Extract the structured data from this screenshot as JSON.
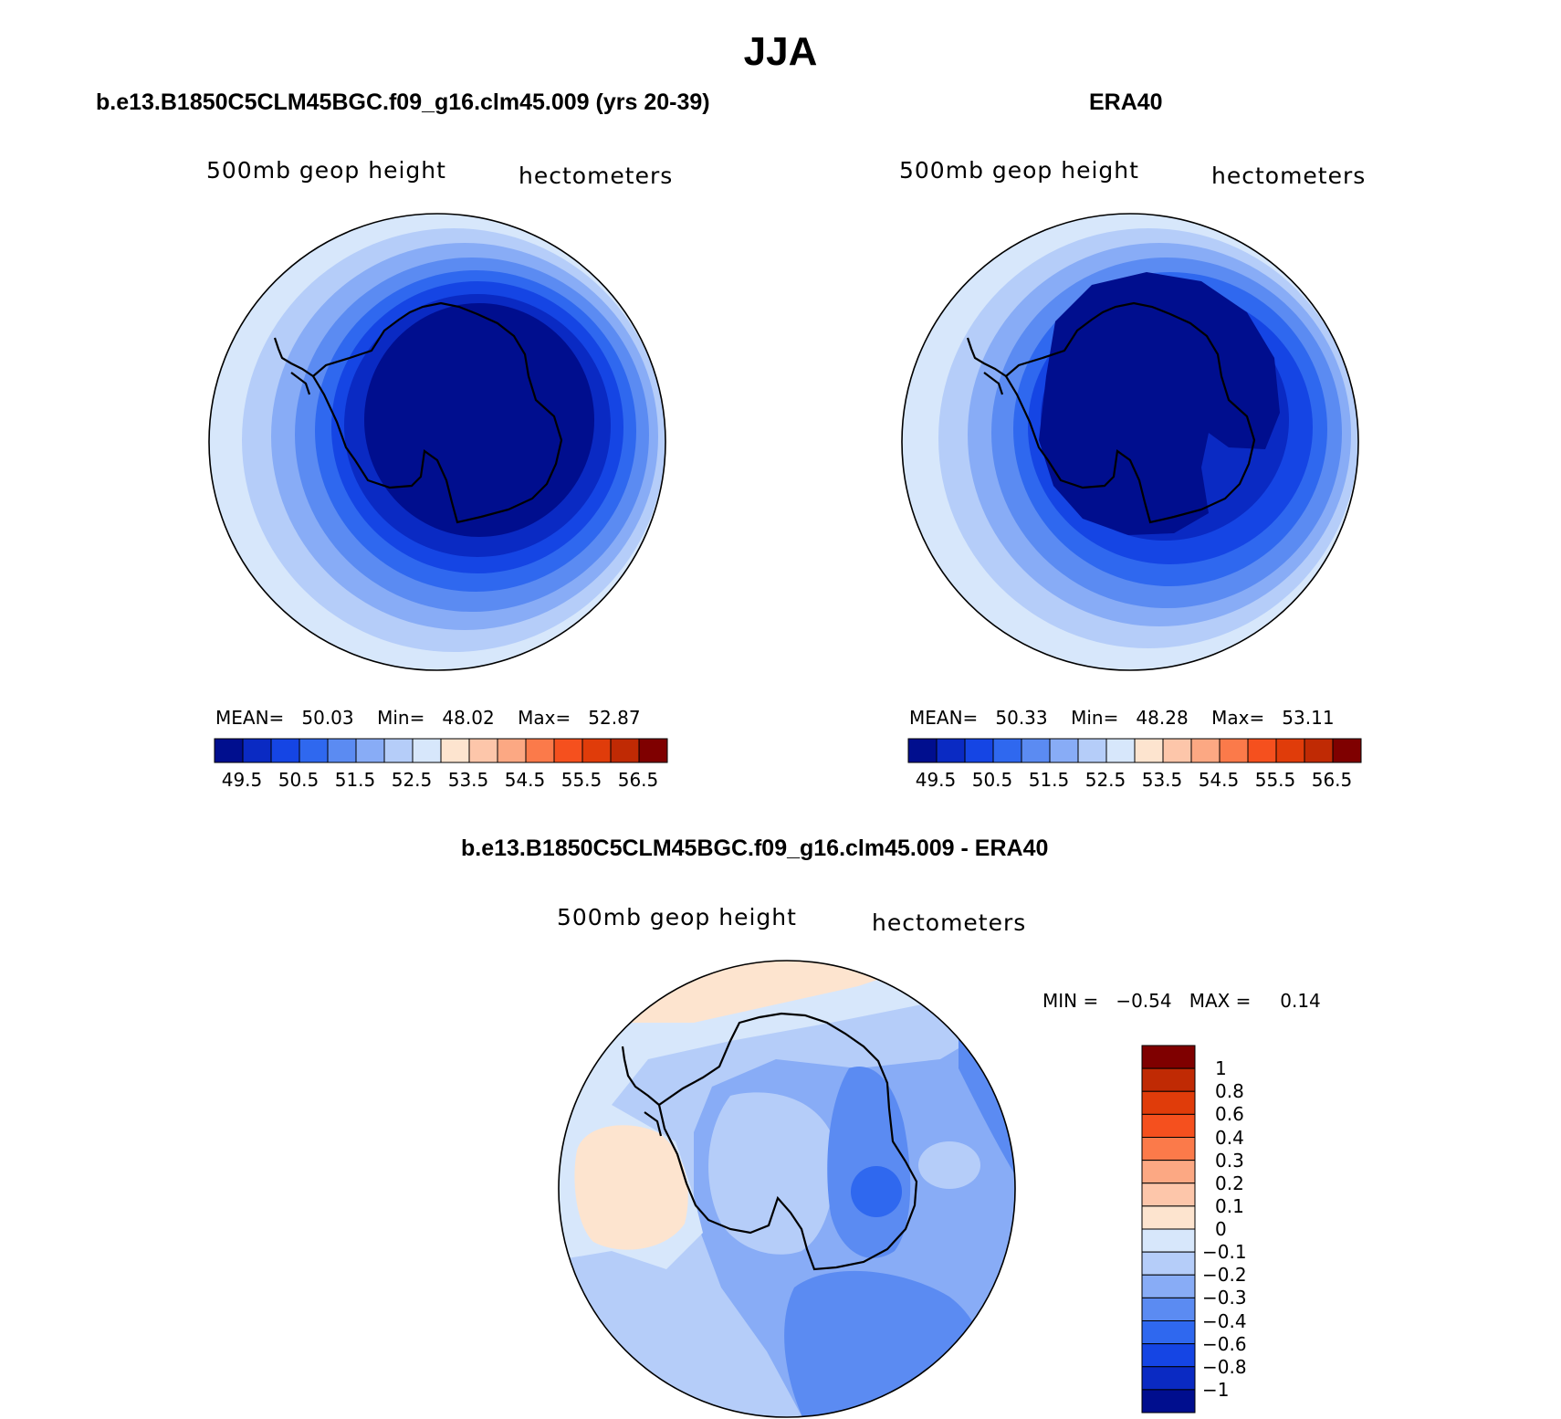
{
  "main_title": "JJA",
  "panels": [
    {
      "id": "model",
      "title": "b.e13.B1850C5CLM45BGC.f09_g16.clm45.009 (yrs 20-39)",
      "label_left": "500mb geop height",
      "label_right": "hectometers",
      "stats": {
        "mean_label": "MEAN=",
        "mean": "50.03",
        "min_label": "Min=",
        "min": "48.02",
        "max_label": "Max=",
        "max": "52.87"
      },
      "rings": [
        "#d7e7fb",
        "#b5cdf9",
        "#88acf6",
        "#5b8bf2",
        "#2f68ef",
        "#1545e4",
        "#0a2ac3",
        "#000e8e"
      ]
    },
    {
      "id": "obs",
      "title": "ERA40",
      "label_left": "500mb geop height",
      "label_right": "hectometers",
      "stats": {
        "mean_label": "MEAN=",
        "mean": "50.33",
        "min_label": "Min=",
        "min": "48.28",
        "max_label": "Max=",
        "max": "53.11"
      },
      "rings": [
        "#d7e7fb",
        "#b5cdf9",
        "#88acf6",
        "#5b8bf2",
        "#2f68ef",
        "#1545e4",
        "#0a2ac3",
        "#000e8e"
      ]
    }
  ],
  "horizontal_colorbar": {
    "colors": [
      "#000e8e",
      "#0a2ac3",
      "#1545e4",
      "#2f68ef",
      "#5b8bf2",
      "#88acf6",
      "#b5cdf9",
      "#d7e7fb",
      "#fde4cf",
      "#fdc6aa",
      "#fca883",
      "#fb7a4a",
      "#f5501e",
      "#e03c0a",
      "#c02a04",
      "#7f0000"
    ],
    "tick_labels": [
      "49.5",
      "50.5",
      "51.5",
      "52.5",
      "53.5",
      "54.5",
      "55.5",
      "56.5"
    ]
  },
  "difference_panel": {
    "title": "b.e13.B1850C5CLM45BGC.f09_g16.clm45.009 - ERA40",
    "label_left": "500mb geop height",
    "label_right": "hectometers",
    "stats": {
      "min_label": "MIN =",
      "min": "−0.54",
      "max_label": "MAX =",
      "max": "0.14"
    },
    "colorbar": {
      "colors": [
        "#7f0000",
        "#c02a04",
        "#e03c0a",
        "#f5501e",
        "#fb7a4a",
        "#fca883",
        "#fdc6aa",
        "#fde4cf",
        "#d7e7fb",
        "#b5cdf9",
        "#88acf6",
        "#5b8bf2",
        "#2f68ef",
        "#1545e4",
        "#0a2ac3",
        "#000e8e"
      ],
      "tick_labels": [
        "1",
        "0.8",
        "0.6",
        "0.4",
        "0.3",
        "0.2",
        "0.1",
        "0",
        "−0.1",
        "−0.2",
        "−0.3",
        "−0.4",
        "−0.6",
        "−0.8",
        "−1"
      ]
    }
  }
}
